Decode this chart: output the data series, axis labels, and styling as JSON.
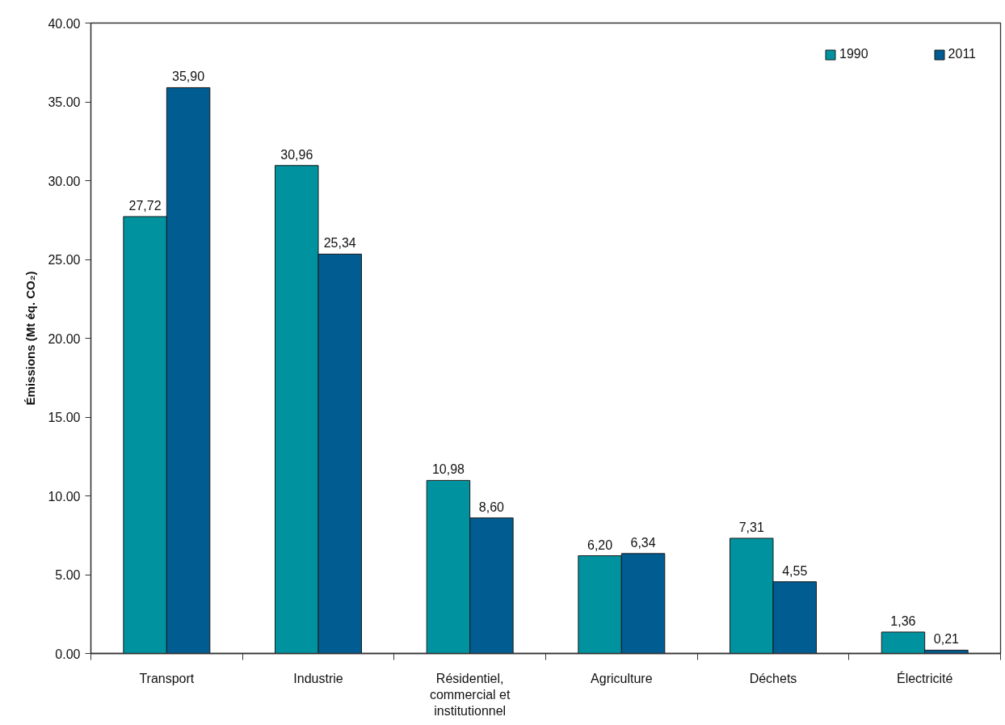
{
  "chart_data": {
    "type": "bar",
    "ylabel": "Émissions (Mt éq. CO₂)",
    "categories": [
      "Transport",
      "Industrie",
      "Résidentiel, commercial et institutionnel",
      "Agriculture",
      "Déchets",
      "Électricité"
    ],
    "series": [
      {
        "name": "1990",
        "color": "#00929f",
        "values": [
          27.72,
          30.96,
          10.98,
          6.2,
          7.31,
          1.36
        ],
        "value_labels": [
          "27,72",
          "30,96",
          "10,98",
          "6,20",
          "7,31",
          "1,36"
        ]
      },
      {
        "name": "2011",
        "color": "#005c91",
        "values": [
          35.9,
          25.34,
          8.6,
          6.34,
          4.55,
          0.21
        ],
        "value_labels": [
          "35,90",
          "25,34",
          "8,60",
          "6,34",
          "4,55",
          "0,21"
        ]
      }
    ],
    "ylim": [
      0,
      40
    ],
    "yticks": [
      {
        "value": 0,
        "label": "0.00"
      },
      {
        "value": 5,
        "label": "5.00"
      },
      {
        "value": 10,
        "label": "10.00"
      },
      {
        "value": 15,
        "label": "15.00"
      },
      {
        "value": 20,
        "label": "20.00"
      },
      {
        "value": 25,
        "label": "25.00"
      },
      {
        "value": 30,
        "label": "30.00"
      },
      {
        "value": 35,
        "label": "35.00"
      },
      {
        "value": 40,
        "label": "40.00"
      }
    ],
    "legend": "top right"
  }
}
